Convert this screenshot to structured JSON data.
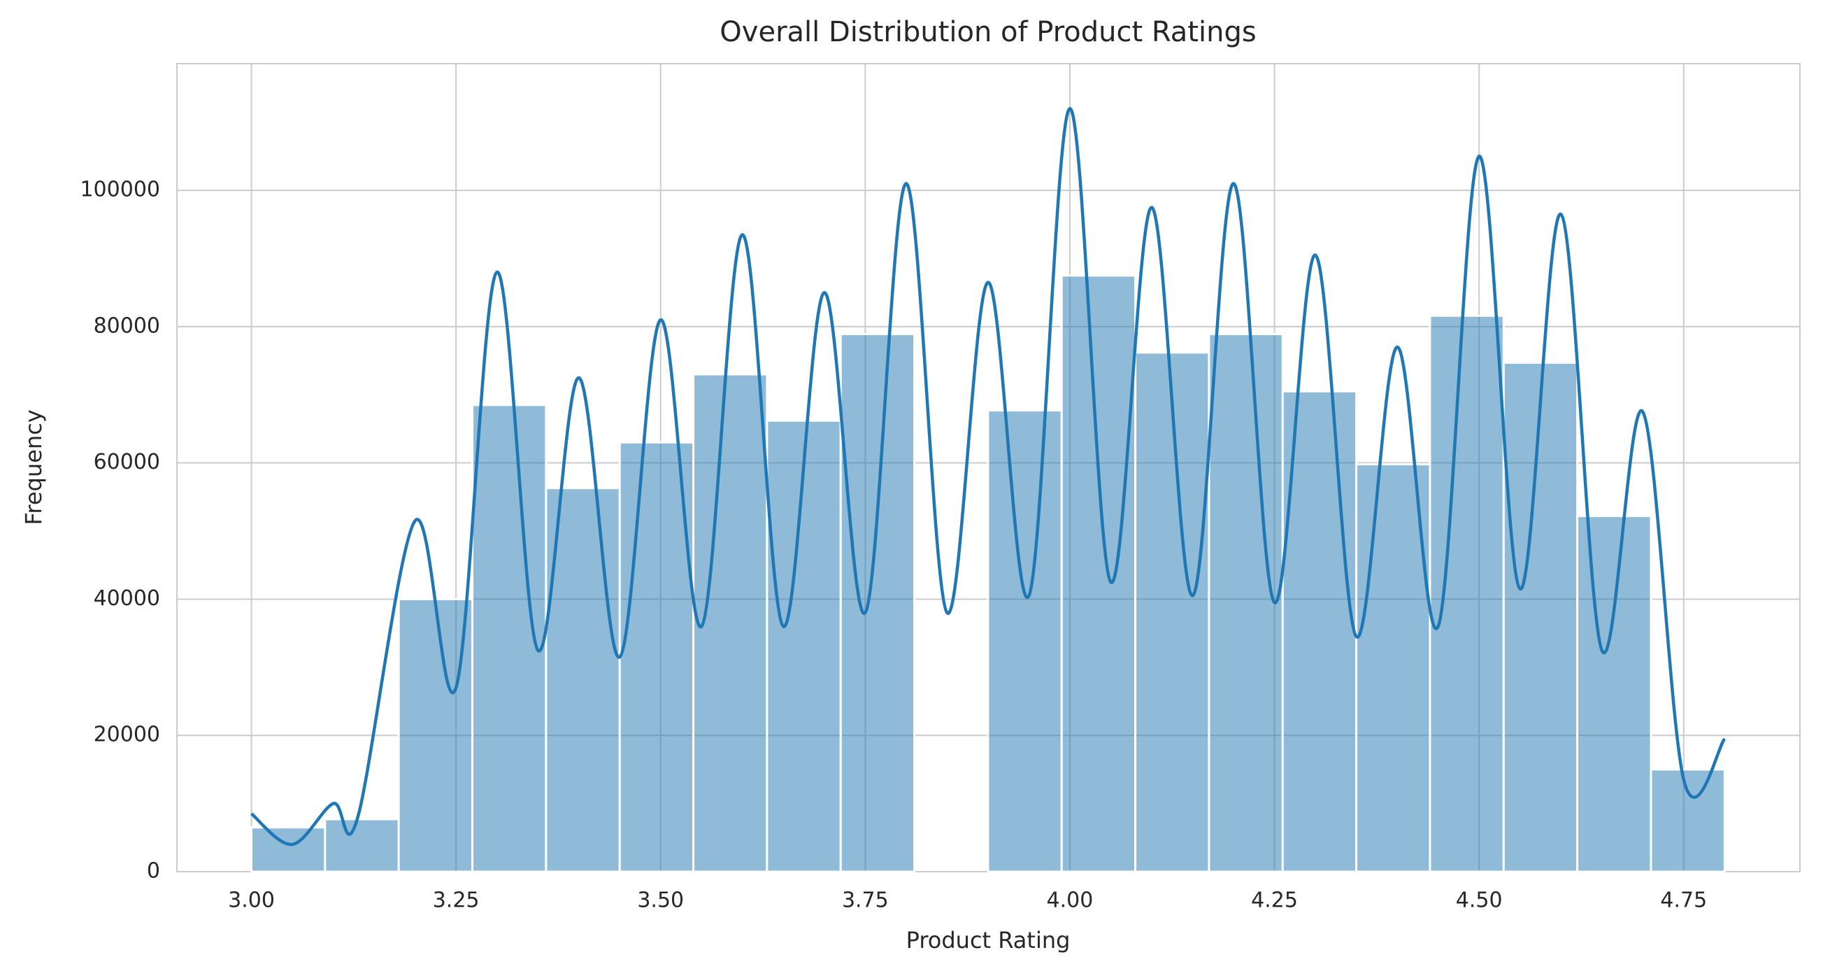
{
  "chart_data": {
    "type": "histogram",
    "title": "Overall Distribution of Product Ratings",
    "x_label": "Product Rating",
    "y_label": "Frequency",
    "bins": [
      3.0,
      3.09,
      3.18,
      3.27,
      3.36,
      3.45,
      3.54,
      3.63,
      3.72,
      3.81,
      3.9,
      3.99,
      4.08,
      4.17,
      4.26,
      4.35,
      4.44,
      4.53,
      4.62,
      4.71,
      4.8
    ],
    "values": [
      6500,
      7700,
      40000,
      68500,
      56300,
      63000,
      73000,
      66200,
      78900,
      0,
      67700,
      87500,
      76200,
      78900,
      70500,
      59800,
      81600,
      74700,
      52200,
      15000
    ],
    "color": "#1f77b4",
    "kde": {
      "x": [
        3.0,
        3.05,
        3.1,
        3.13,
        3.2,
        3.25,
        3.3,
        3.35,
        3.4,
        3.45,
        3.5,
        3.55,
        3.6,
        3.65,
        3.7,
        3.75,
        3.8,
        3.85,
        3.9,
        3.95,
        4.0,
        4.05,
        4.1,
        4.15,
        4.2,
        4.25,
        4.3,
        4.35,
        4.4,
        4.45,
        4.5,
        4.55,
        4.6,
        4.65,
        4.7,
        4.75,
        4.8
      ],
      "values": [
        8500,
        4000,
        10000,
        8000,
        51500,
        27000,
        88000,
        32500,
        72500,
        31500,
        81000,
        36000,
        93500,
        36000,
        85000,
        38000,
        101000,
        38000,
        86500,
        40500,
        112000,
        42500,
        97500,
        40500,
        101000,
        39500,
        90500,
        34500,
        77000,
        36000,
        105000,
        41500,
        96500,
        32500,
        67500,
        13500,
        19500
      ]
    },
    "xlim": [
      2.909,
      4.892
    ],
    "ylim": [
      0,
      118600
    ],
    "xticks": [
      {
        "value": 3.0,
        "label": "3.00"
      },
      {
        "value": 3.25,
        "label": "3.25"
      },
      {
        "value": 3.5,
        "label": "3.50"
      },
      {
        "value": 3.75,
        "label": "3.75"
      },
      {
        "value": 4.0,
        "label": "4.00"
      },
      {
        "value": 4.25,
        "label": "4.25"
      },
      {
        "value": 4.5,
        "label": "4.50"
      },
      {
        "value": 4.75,
        "label": "4.75"
      }
    ],
    "yticks": [
      0,
      20000,
      40000,
      60000,
      80000,
      100000
    ],
    "grid": true
  }
}
